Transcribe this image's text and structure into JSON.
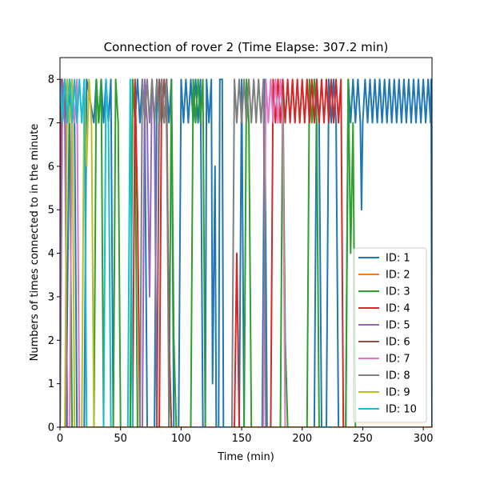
{
  "chart_data": {
    "type": "line",
    "title": "Connection of rover 2 (Time Elapse: 307.2 min)",
    "xlabel": "Time (min)",
    "ylabel": "Numbers of times connected to in the minute",
    "xlim": [
      0,
      307.2
    ],
    "ylim": [
      0,
      8.5
    ],
    "xticks": [
      0,
      50,
      100,
      150,
      200,
      250,
      300
    ],
    "yticks": [
      0,
      1,
      2,
      3,
      4,
      5,
      6,
      7,
      8
    ],
    "grid": false,
    "legend_position": "lower right",
    "series": [
      {
        "name": "ID: 1",
        "color": "#1f77b4",
        "segments": [
          {
            "x": [
              0,
              5,
              8,
              12,
              14
            ],
            "y": [
              0,
              0,
              8,
              7,
              0
            ]
          },
          {
            "x": [
              20,
              22,
              28,
              30,
              32,
              34,
              36,
              38,
              40,
              42,
              44
            ],
            "y": [
              0,
              8,
              7,
              8,
              7,
              8,
              7,
              8,
              7,
              8,
              0
            ]
          },
          {
            "x": [
              58,
              60,
              62,
              64,
              66,
              68,
              70,
              72,
              74
            ],
            "y": [
              0,
              8,
              7,
              8,
              7,
              8,
              7,
              0,
              0
            ]
          },
          {
            "x": [
              78,
              80,
              82,
              84,
              86,
              88,
              90,
              92,
              94
            ],
            "y": [
              0,
              8,
              7,
              8,
              7,
              8,
              7,
              8,
              0
            ]
          },
          {
            "x": [
              98,
              100,
              102,
              104,
              106,
              108,
              110,
              112,
              114,
              116,
              118
            ],
            "y": [
              0,
              8,
              7,
              8,
              7,
              8,
              7,
              8,
              7,
              8,
              0
            ]
          },
          {
            "x": [
              120,
              121,
              123,
              125,
              126,
              128,
              129
            ],
            "y": [
              0,
              8,
              7,
              8,
              1,
              6,
              0
            ]
          },
          {
            "x": [
              131,
              132,
              134,
              135
            ],
            "y": [
              0,
              8,
              8,
              0
            ]
          },
          {
            "x": [
              148,
              150,
              152
            ],
            "y": [
              0,
              8,
              0
            ]
          },
          {
            "x": [
              167,
              169,
              171
            ],
            "y": [
              0,
              8,
              0
            ]
          },
          {
            "x": [
              210,
              212,
              214,
              216
            ],
            "y": [
              0,
              8,
              7,
              0
            ]
          },
          {
            "x": [
              220,
              222,
              224,
              226,
              228,
              230
            ],
            "y": [
              0,
              8,
              7,
              8,
              7,
              0
            ]
          },
          {
            "x": [
              236,
              238,
              240,
              242,
              244,
              246,
              248,
              249,
              250
            ],
            "y": [
              0,
              8,
              7,
              8,
              7,
              8,
              7,
              5,
              7
            ]
          },
          {
            "x": [
              250,
              252,
              254,
              256,
              258,
              260,
              262,
              264,
              266,
              268,
              270,
              272,
              274,
              276,
              278,
              280,
              282,
              284,
              286,
              288,
              290,
              292,
              294,
              296,
              298,
              300,
              302,
              304,
              306,
              306.5,
              307.2
            ],
            "y": [
              7,
              8,
              7,
              8,
              7,
              8,
              7,
              8,
              7,
              8,
              7,
              8,
              7,
              8,
              7,
              8,
              7,
              8,
              7,
              8,
              7,
              8,
              7,
              8,
              7,
              8,
              7,
              8,
              7,
              8,
              0
            ]
          }
        ]
      },
      {
        "name": "ID: 2",
        "color": "#ff7f0e",
        "segments": [
          {
            "x": [
              0,
              307.2
            ],
            "y": [
              0,
              0
            ]
          }
        ]
      },
      {
        "name": "ID: 3",
        "color": "#2ca02c",
        "segments": [
          {
            "x": [
              0,
              2,
              4,
              6,
              8,
              10,
              12
            ],
            "y": [
              0,
              8,
              7,
              8,
              7,
              0,
              0
            ]
          },
          {
            "x": [
              28,
              30,
              32,
              34,
              36
            ],
            "y": [
              0,
              8,
              7,
              8,
              0
            ]
          },
          {
            "x": [
              44,
              46,
              48,
              50
            ],
            "y": [
              0,
              8,
              7,
              0
            ]
          },
          {
            "x": [
              58,
              60,
              62,
              64
            ],
            "y": [
              0,
              8,
              7,
              0
            ]
          },
          {
            "x": [
              90,
              92,
              94,
              96
            ],
            "y": [
              0,
              8,
              2,
              0
            ]
          },
          {
            "x": [
              108,
              110,
              112,
              114,
              116,
              118,
              120
            ],
            "y": [
              0,
              8,
              7,
              8,
              7,
              8,
              0
            ]
          },
          {
            "x": [
              152,
              154,
              156,
              158
            ],
            "y": [
              0,
              8,
              7,
              0
            ]
          },
          {
            "x": [
              182,
              184,
              186,
              188,
              190
            ],
            "y": [
              0,
              8,
              2,
              0,
              0
            ]
          },
          {
            "x": [
              204,
              206,
              208,
              210,
              212,
              214
            ],
            "y": [
              0,
              8,
              7,
              8,
              7,
              0
            ]
          },
          {
            "x": [
              236,
              238,
              240,
              242,
              244
            ],
            "y": [
              0,
              8,
              4,
              7,
              0
            ]
          }
        ]
      },
      {
        "name": "ID: 4",
        "color": "#d62728",
        "segments": [
          {
            "x": [
              0,
              1,
              2,
              4,
              6
            ],
            "y": [
              0,
              8,
              7,
              8,
              0
            ]
          },
          {
            "x": [
              60,
              62,
              64,
              66
            ],
            "y": [
              0,
              8,
              5,
              0
            ]
          },
          {
            "x": [
              82,
              84,
              86,
              88,
              90,
              92
            ],
            "y": [
              0,
              8,
              7,
              8,
              2,
              0
            ]
          },
          {
            "x": [
              144,
              146,
              148
            ],
            "y": [
              0,
              4,
              0
            ]
          },
          {
            "x": [
              174,
              176,
              178,
              180,
              182,
              184,
              186,
              188,
              190,
              192,
              194,
              196,
              198,
              200,
              202,
              204,
              206,
              208,
              210,
              212,
              214,
              216,
              218,
              220,
              222,
              224,
              226,
              228,
              230,
              232,
              234
            ],
            "y": [
              0,
              8,
              7,
              8,
              7,
              8,
              7,
              8,
              7,
              8,
              7,
              8,
              7,
              8,
              7,
              8,
              7,
              8,
              7,
              8,
              7,
              8,
              7,
              8,
              7,
              8,
              7,
              8,
              7,
              8,
              0
            ]
          }
        ]
      },
      {
        "name": "ID: 5",
        "color": "#9467bd",
        "segments": [
          {
            "x": [
              0,
              2,
              4,
              6,
              8
            ],
            "y": [
              0,
              8,
              7,
              0,
              0
            ]
          },
          {
            "x": [
              68,
              70,
              72,
              74,
              76,
              78,
              80
            ],
            "y": [
              0,
              8,
              7,
              3,
              8,
              7,
              0
            ]
          }
        ]
      },
      {
        "name": "ID: 6",
        "color": "#8c564b",
        "segments": [
          {
            "x": [
              80,
              82,
              84,
              86,
              88,
              90,
              92
            ],
            "y": [
              0,
              8,
              7,
              8,
              7,
              2,
              0
            ]
          }
        ]
      },
      {
        "name": "ID: 7",
        "color": "#e377c2",
        "segments": [
          {
            "x": [
              8,
              10,
              12,
              14,
              16
            ],
            "y": [
              0,
              8,
              7,
              8,
              0
            ]
          },
          {
            "x": [
              168,
              170,
              172,
              174,
              176,
              178,
              180,
              182,
              184,
              186
            ],
            "y": [
              0,
              8,
              7,
              8,
              7,
              8,
              7,
              8,
              7,
              0
            ]
          }
        ]
      },
      {
        "name": "ID: 8",
        "color": "#7f7f7f",
        "segments": [
          {
            "x": [
              66,
              68,
              70,
              72,
              74,
              76,
              78,
              80,
              82,
              84,
              86,
              88,
              90
            ],
            "y": [
              0,
              8,
              7,
              8,
              7,
              8,
              7,
              8,
              7,
              8,
              7,
              8,
              0
            ]
          },
          {
            "x": [
              142,
              144,
              146,
              148,
              150,
              152,
              154,
              156,
              158,
              160,
              162,
              164,
              166,
              168,
              170
            ],
            "y": [
              0,
              8,
              7,
              8,
              7,
              8,
              7,
              8,
              7,
              8,
              7,
              8,
              7,
              8,
              0
            ]
          }
        ]
      },
      {
        "name": "ID: 9",
        "color": "#bcbd22",
        "segments": [
          {
            "x": [
              4,
              6,
              8,
              10,
              12,
              14
            ],
            "y": [
              0,
              8,
              7,
              8,
              0,
              0
            ]
          },
          {
            "x": [
              18,
              20,
              22,
              24,
              26,
              28
            ],
            "y": [
              0,
              8,
              6,
              8,
              7,
              0
            ]
          }
        ]
      },
      {
        "name": "ID: 10",
        "color": "#17becf",
        "segments": [
          {
            "x": [
              0,
              2,
              4,
              6,
              8,
              10,
              12,
              14,
              16,
              18,
              20,
              22
            ],
            "y": [
              8,
              7,
              8,
              7,
              8,
              7,
              8,
              7,
              8,
              7,
              8,
              0
            ]
          },
          {
            "x": [
              36,
              38,
              40,
              42
            ],
            "y": [
              0,
              8,
              7,
              0
            ]
          },
          {
            "x": [
              56,
              58,
              60
            ],
            "y": [
              0,
              8,
              0
            ]
          }
        ]
      }
    ]
  }
}
